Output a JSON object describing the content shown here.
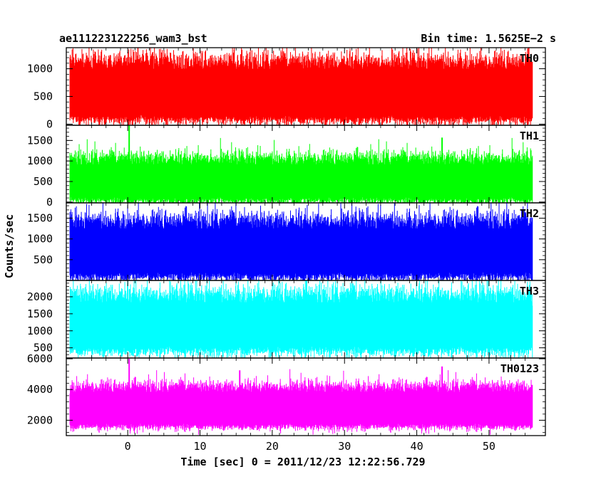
{
  "header": {
    "left_title": "ae111223122256_wam3_bst",
    "right_title": "Bin time: 1.5625E−2 s"
  },
  "chart_data": {
    "type": "line",
    "xlabel": "Time [sec] 0 = 2011/12/23 12:22:56.729",
    "ylabel": "Counts/sec",
    "xlim": [
      -8.5,
      57.8
    ],
    "xticks": [
      0,
      10,
      20,
      30,
      40,
      50
    ],
    "x_range": [
      -8.0,
      56.0
    ],
    "bin_time": 0.015625,
    "grid": false,
    "panels": [
      {
        "name": "TH0",
        "color": "#ff0000",
        "ylim": [
          -20,
          1380
        ],
        "yticks": [
          0,
          500,
          1000
        ],
        "baseline": 620,
        "low": 120,
        "high": 1120,
        "noise": 240,
        "spikes": [],
        "summary": {
          "mean": 620,
          "low": 120,
          "high": 1350
        }
      },
      {
        "name": "TH1",
        "color": "#00ff00",
        "ylim": [
          -20,
          1870
        ],
        "yticks": [
          0,
          500,
          1000,
          1500
        ],
        "baseline": 600,
        "low": 80,
        "high": 1050,
        "noise": 260,
        "spikes": [
          {
            "x": 0.2,
            "y": 1870
          },
          {
            "x": 43.5,
            "y": 1570
          }
        ],
        "summary": {
          "mean": 600,
          "low": 80,
          "high": 1870
        }
      },
      {
        "name": "TH2",
        "color": "#0000ff",
        "ylim": [
          0,
          1870
        ],
        "yticks": [
          500,
          1000,
          1500
        ],
        "baseline": 800,
        "low": 150,
        "high": 1420,
        "noise": 330,
        "spikes": [],
        "summary": {
          "mean": 800,
          "low": 150,
          "high": 1870
        }
      },
      {
        "name": "TH3",
        "color": "#00ffff",
        "ylim": [
          200,
          2480
        ],
        "yticks": [
          500,
          1000,
          1500,
          2000
        ],
        "baseline": 1400,
        "low": 480,
        "high": 2050,
        "noise": 420,
        "spikes": [],
        "summary": {
          "mean": 1400,
          "low": 300,
          "high": 2480
        }
      },
      {
        "name": "TH0123",
        "color": "#ff00ff",
        "ylim": [
          1000,
          6050
        ],
        "yticks": [
          2000,
          4000,
          6000
        ],
        "baseline": 3000,
        "low": 1700,
        "high": 4150,
        "noise": 600,
        "spikes": [
          {
            "x": 0.2,
            "y": 6000
          },
          {
            "x": 43.5,
            "y": 5500
          },
          {
            "x": 15.5,
            "y": 5250
          }
        ],
        "summary": {
          "mean": 3000,
          "low": 1500,
          "high": 6000
        }
      }
    ]
  }
}
